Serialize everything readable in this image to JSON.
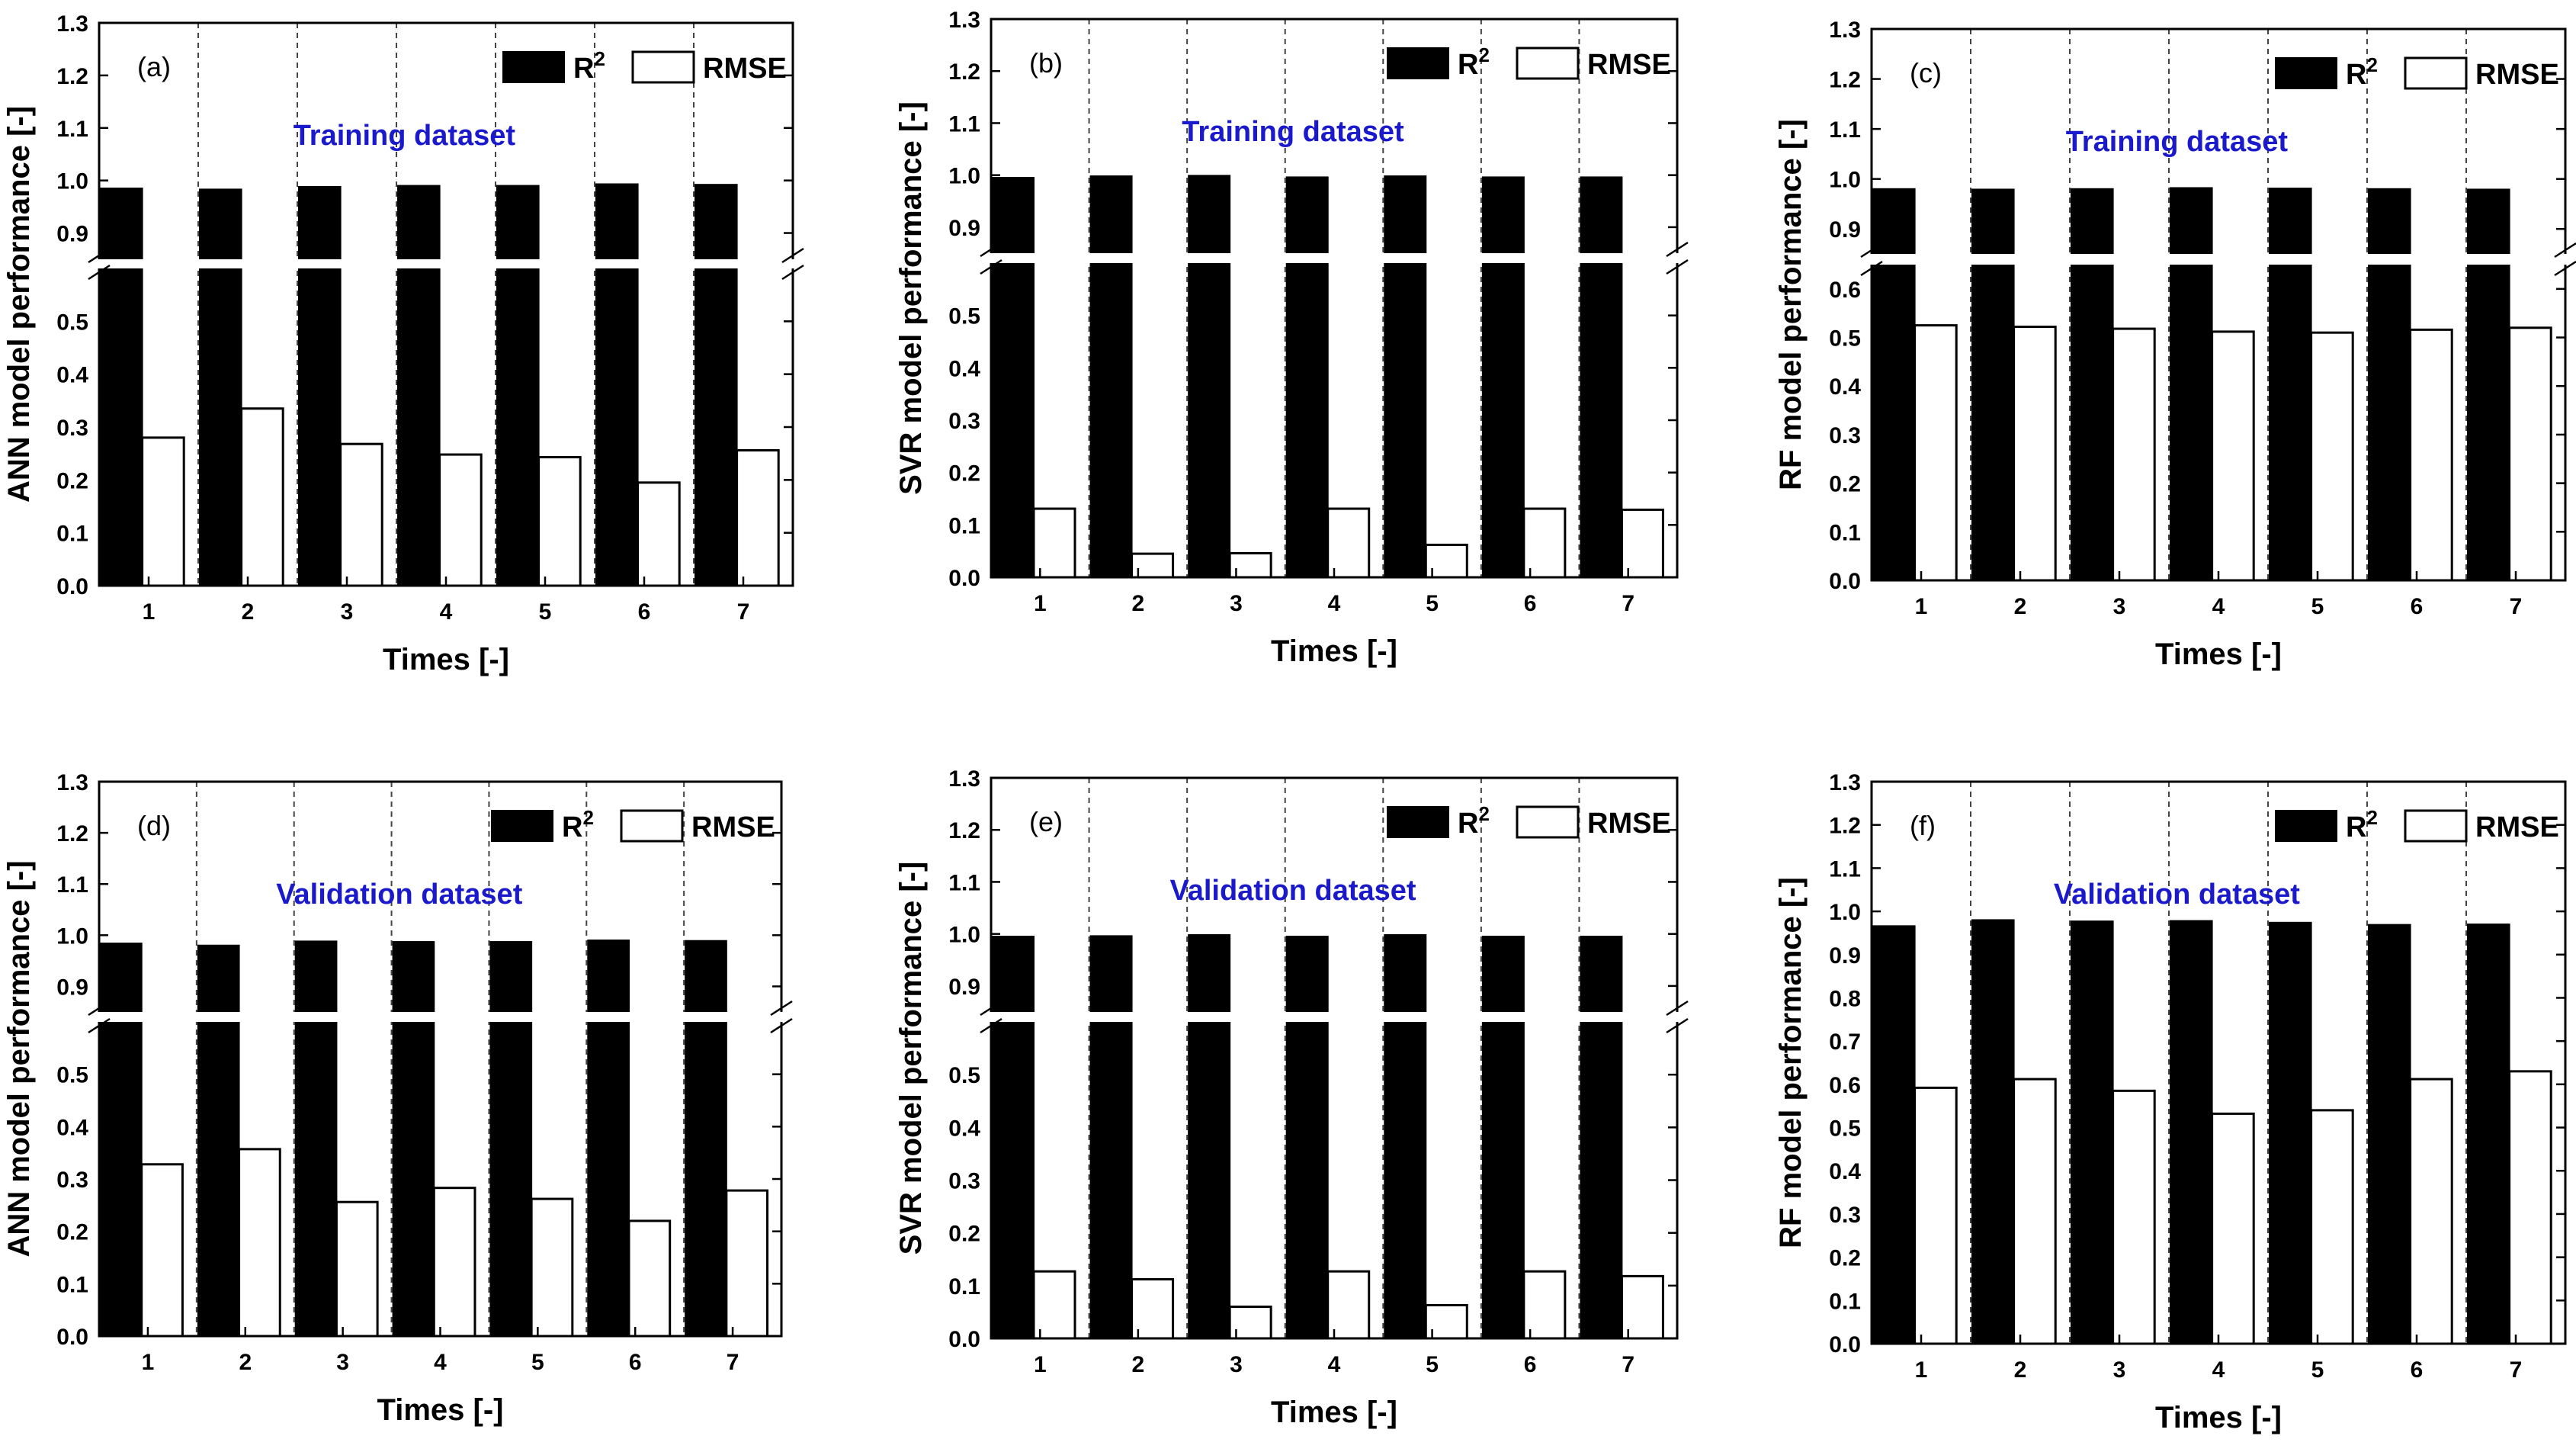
{
  "chart_data": [
    {
      "id": "a",
      "type": "bar",
      "panel_label": "(a)",
      "annotation": "Training dataset",
      "xlabel": "Times [-]",
      "ylabel": "ANN model performance [-]",
      "categories": [
        "1",
        "2",
        "3",
        "4",
        "5",
        "6",
        "7"
      ],
      "series": [
        {
          "name": "R",
          "values": [
            0.985,
            0.983,
            0.988,
            0.99,
            0.99,
            0.993,
            0.992
          ]
        },
        {
          "name": "RMSE",
          "values": [
            0.28,
            0.335,
            0.268,
            0.248,
            0.243,
            0.195,
            0.256
          ]
        }
      ],
      "axis_break": {
        "lower": [
          0,
          0.6
        ],
        "upper": [
          0.85,
          1.3
        ]
      },
      "lower_ticks": [
        "0.0",
        "0.1",
        "0.2",
        "0.3",
        "0.4",
        "0.5"
      ],
      "upper_ticks": [
        "0.9",
        "1.0",
        "1.1",
        "1.2",
        "1.3"
      ],
      "legend": {
        "r2_label": "R",
        "r2_superscript": "2",
        "rmse_label": "RMSE",
        "position": "top-right"
      }
    },
    {
      "id": "b",
      "type": "bar",
      "panel_label": "(b)",
      "annotation": "Training dataset",
      "xlabel": "Times [-]",
      "ylabel": "SVR model performance [-]",
      "categories": [
        "1",
        "2",
        "3",
        "4",
        "5",
        "6",
        "7"
      ],
      "series": [
        {
          "name": "R",
          "values": [
            0.995,
            0.998,
            0.999,
            0.996,
            0.998,
            0.996,
            0.996
          ]
        },
        {
          "name": "RMSE",
          "values": [
            0.131,
            0.045,
            0.046,
            0.131,
            0.062,
            0.131,
            0.129
          ]
        }
      ],
      "axis_break": {
        "lower": [
          0,
          0.6
        ],
        "upper": [
          0.85,
          1.3
        ]
      },
      "lower_ticks": [
        "0.0",
        "0.1",
        "0.2",
        "0.3",
        "0.4",
        "0.5"
      ],
      "upper_ticks": [
        "0.9",
        "1.0",
        "1.1",
        "1.2",
        "1.3"
      ],
      "legend": {
        "r2_label": "R",
        "r2_superscript": "2",
        "rmse_label": "RMSE",
        "position": "top-right"
      }
    },
    {
      "id": "c",
      "type": "bar",
      "panel_label": "(c)",
      "annotation": "Training dataset",
      "xlabel": "Times [-]",
      "ylabel": "RF model performance [-]",
      "categories": [
        "1",
        "2",
        "3",
        "4",
        "5",
        "6",
        "7"
      ],
      "series": [
        {
          "name": "R",
          "values": [
            0.98,
            0.979,
            0.98,
            0.982,
            0.981,
            0.98,
            0.979
          ]
        },
        {
          "name": "RMSE",
          "values": [
            0.525,
            0.522,
            0.518,
            0.512,
            0.51,
            0.516,
            0.52
          ]
        }
      ],
      "axis_break": {
        "lower": [
          0,
          0.65
        ],
        "upper": [
          0.85,
          1.3
        ]
      },
      "lower_ticks": [
        "0.0",
        "0.1",
        "0.2",
        "0.3",
        "0.4",
        "0.5",
        "0.6"
      ],
      "upper_ticks": [
        "0.9",
        "1.0",
        "1.1",
        "1.2",
        "1.3"
      ],
      "legend": {
        "r2_label": "R",
        "r2_superscript": "2",
        "rmse_label": "RMSE",
        "position": "top-right"
      }
    },
    {
      "id": "d",
      "type": "bar",
      "panel_label": "(d)",
      "annotation": "Validation dataset",
      "xlabel": "Times [-]",
      "ylabel": "ANN model performance [-]",
      "categories": [
        "1",
        "2",
        "3",
        "4",
        "5",
        "6",
        "7"
      ],
      "series": [
        {
          "name": "R",
          "values": [
            0.984,
            0.98,
            0.988,
            0.987,
            0.987,
            0.99,
            0.989
          ]
        },
        {
          "name": "RMSE",
          "values": [
            0.328,
            0.357,
            0.256,
            0.283,
            0.262,
            0.22,
            0.278
          ]
        }
      ],
      "axis_break": {
        "lower": [
          0,
          0.6
        ],
        "upper": [
          0.85,
          1.3
        ]
      },
      "lower_ticks": [
        "0.0",
        "0.1",
        "0.2",
        "0.3",
        "0.4",
        "0.5"
      ],
      "upper_ticks": [
        "0.9",
        "1.0",
        "1.1",
        "1.2",
        "1.3"
      ],
      "legend": {
        "r2_label": "R",
        "r2_superscript": "2",
        "rmse_label": "RMSE",
        "position": "top-right"
      }
    },
    {
      "id": "e",
      "type": "bar",
      "panel_label": "(e)",
      "annotation": "Validation dataset",
      "xlabel": "Times [-]",
      "ylabel": "SVR model performance [-]",
      "categories": [
        "1",
        "2",
        "3",
        "4",
        "5",
        "6",
        "7"
      ],
      "series": [
        {
          "name": "R",
          "values": [
            0.995,
            0.996,
            0.998,
            0.995,
            0.998,
            0.995,
            0.995
          ]
        },
        {
          "name": "RMSE",
          "values": [
            0.127,
            0.112,
            0.06,
            0.127,
            0.063,
            0.127,
            0.118
          ]
        }
      ],
      "axis_break": {
        "lower": [
          0,
          0.6
        ],
        "upper": [
          0.85,
          1.3
        ]
      },
      "lower_ticks": [
        "0.0",
        "0.1",
        "0.2",
        "0.3",
        "0.4",
        "0.5"
      ],
      "upper_ticks": [
        "0.9",
        "1.0",
        "1.1",
        "1.2",
        "1.3"
      ],
      "legend": {
        "r2_label": "R",
        "r2_superscript": "2",
        "rmse_label": "RMSE",
        "position": "top-right"
      }
    },
    {
      "id": "f",
      "type": "bar",
      "panel_label": "(f)",
      "annotation": "Validation dataset",
      "xlabel": "Times [-]",
      "ylabel": "RF model performance [-]",
      "categories": [
        "1",
        "2",
        "3",
        "4",
        "5",
        "6",
        "7"
      ],
      "series": [
        {
          "name": "R",
          "values": [
            0.966,
            0.98,
            0.977,
            0.978,
            0.974,
            0.969,
            0.97
          ]
        },
        {
          "name": "RMSE",
          "values": [
            0.592,
            0.612,
            0.585,
            0.532,
            0.54,
            0.612,
            0.63
          ]
        }
      ],
      "ylim": [
        0,
        1.3
      ],
      "ticks": [
        "0.0",
        "0.1",
        "0.2",
        "0.3",
        "0.4",
        "0.5",
        "0.6",
        "0.7",
        "0.8",
        "0.9",
        "1.0",
        "1.1",
        "1.2",
        "1.3"
      ],
      "legend": {
        "r2_label": "R",
        "r2_superscript": "2",
        "rmse_label": "RMSE",
        "position": "top-right"
      }
    }
  ]
}
